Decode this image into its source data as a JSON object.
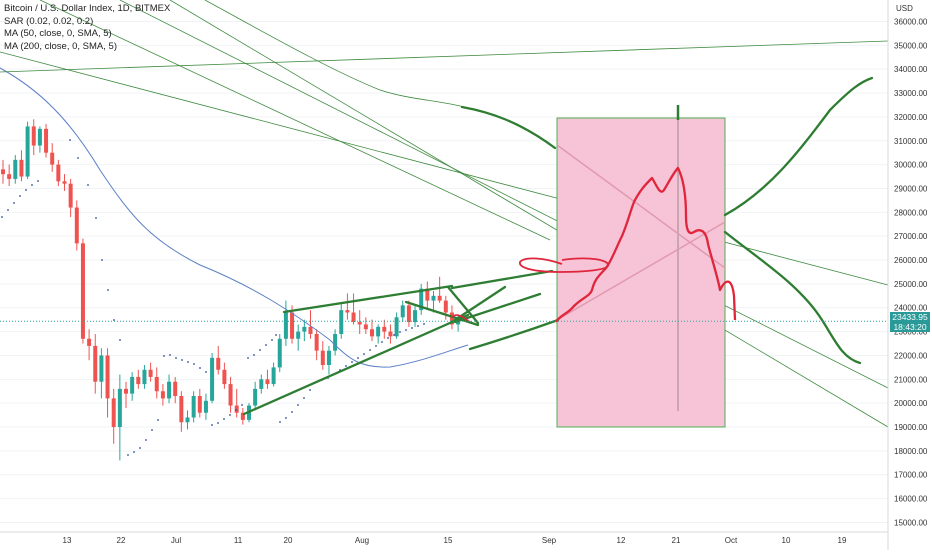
{
  "legend": {
    "title": "Bitcoin / U.S. Dollar Index, 1D, BITMEX",
    "sar": "SAR (0.02, 0.02, 0.2)",
    "ma50": "MA (50, close, 0, SMA, 5)",
    "ma200": "MA (200, close, 0, SMA, 5)"
  },
  "price_tag": {
    "price": "23433.95",
    "countdown": "18:43:20"
  },
  "chart_data": {
    "type": "candlestick",
    "title": "Bitcoin / U.S. Dollar Index, 1D, BITMEX",
    "currency_label": "USD",
    "y_ticks": [
      36000,
      35000,
      34000,
      33000,
      32000,
      31000,
      30000,
      29000,
      28000,
      27000,
      26000,
      25000,
      24000,
      23000,
      22000,
      21000,
      20000,
      19000,
      18000,
      17000,
      16000,
      15000
    ],
    "ylim": [
      14600,
      36900
    ],
    "x_ticks": [
      "13",
      "22",
      "Jul",
      "11",
      "20",
      "Aug",
      "15",
      "Sep",
      "12",
      "21",
      "Oct",
      "10",
      "19"
    ],
    "last_price": 23433.95,
    "candles": [
      [
        29800,
        30200,
        29200,
        29600
      ],
      [
        29600,
        30000,
        29100,
        29400
      ],
      [
        29400,
        30400,
        29200,
        30200
      ],
      [
        30200,
        30600,
        29300,
        29500
      ],
      [
        29500,
        31800,
        29400,
        31600
      ],
      [
        31600,
        31900,
        30400,
        30800
      ],
      [
        30800,
        31600,
        30500,
        31500
      ],
      [
        31500,
        31700,
        30300,
        30500
      ],
      [
        30500,
        30900,
        29700,
        30000
      ],
      [
        30000,
        30200,
        29100,
        29300
      ],
      [
        29300,
        29600,
        28900,
        29200
      ],
      [
        29200,
        29400,
        27800,
        28200
      ],
      [
        28200,
        28500,
        26400,
        26700
      ],
      [
        26700,
        26900,
        22500,
        22700
      ],
      [
        22700,
        23100,
        21800,
        22400
      ],
      [
        22400,
        22900,
        20400,
        20900
      ],
      [
        20900,
        22300,
        20200,
        22000
      ],
      [
        22000,
        22300,
        19400,
        20200
      ],
      [
        20200,
        20600,
        18300,
        19000
      ],
      [
        19000,
        21200,
        17600,
        20600
      ],
      [
        20600,
        20900,
        19800,
        20400
      ],
      [
        20400,
        21300,
        20100,
        21100
      ],
      [
        21100,
        21400,
        20600,
        20800
      ],
      [
        20800,
        21600,
        20600,
        21400
      ],
      [
        21400,
        21700,
        20900,
        21100
      ],
      [
        21100,
        21500,
        20200,
        20500
      ],
      [
        20500,
        20800,
        19900,
        20200
      ],
      [
        20200,
        21200,
        20000,
        20900
      ],
      [
        20900,
        21100,
        20000,
        20300
      ],
      [
        20300,
        20500,
        18800,
        19200
      ],
      [
        19200,
        19700,
        18900,
        19400
      ],
      [
        19400,
        20500,
        19200,
        20300
      ],
      [
        20300,
        20600,
        19400,
        19600
      ],
      [
        19600,
        20400,
        19300,
        20100
      ],
      [
        20100,
        22100,
        20000,
        21900
      ],
      [
        21900,
        22400,
        21200,
        21400
      ],
      [
        21400,
        21700,
        20600,
        20800
      ],
      [
        20800,
        21100,
        19600,
        19900
      ],
      [
        19900,
        20600,
        19400,
        19600
      ],
      [
        19600,
        19800,
        19100,
        19300
      ],
      [
        19300,
        20000,
        19200,
        19900
      ],
      [
        19900,
        20900,
        19700,
        20600
      ],
      [
        20600,
        21200,
        20400,
        21000
      ],
      [
        21000,
        21400,
        20600,
        20800
      ],
      [
        20800,
        21700,
        20700,
        21500
      ],
      [
        21500,
        22900,
        21300,
        22700
      ],
      [
        22700,
        24300,
        22400,
        23800
      ],
      [
        23800,
        24100,
        22500,
        22700
      ],
      [
        22700,
        23300,
        22200,
        23000
      ],
      [
        23000,
        23500,
        22600,
        23200
      ],
      [
        23200,
        23900,
        22700,
        22900
      ],
      [
        22900,
        23100,
        21800,
        22200
      ],
      [
        22200,
        22600,
        21400,
        21600
      ],
      [
        21600,
        22400,
        21200,
        22200
      ],
      [
        22200,
        23100,
        22000,
        22900
      ],
      [
        22900,
        24200,
        22700,
        23900
      ],
      [
        23900,
        24600,
        23500,
        23800
      ],
      [
        23800,
        24600,
        23300,
        23400
      ],
      [
        23400,
        23900,
        22900,
        23300
      ],
      [
        23300,
        23600,
        22900,
        23100
      ],
      [
        23100,
        23500,
        22600,
        22800
      ],
      [
        22800,
        23300,
        22500,
        23200
      ],
      [
        23200,
        23500,
        22700,
        23000
      ],
      [
        23000,
        23300,
        22500,
        22800
      ],
      [
        22800,
        23800,
        22700,
        23600
      ],
      [
        23600,
        24300,
        23400,
        24100
      ],
      [
        24100,
        24300,
        23200,
        23400
      ],
      [
        23400,
        24100,
        23200,
        23900
      ],
      [
        23900,
        25000,
        23700,
        24800
      ],
      [
        24800,
        25100,
        24000,
        24300
      ],
      [
        24300,
        24700,
        23800,
        24500
      ],
      [
        24500,
        25300,
        24200,
        24300
      ],
      [
        24300,
        24500,
        23500,
        23800
      ],
      [
        23800,
        24100,
        23100,
        23300
      ],
      [
        23300,
        23700,
        23000,
        23434
      ]
    ]
  }
}
